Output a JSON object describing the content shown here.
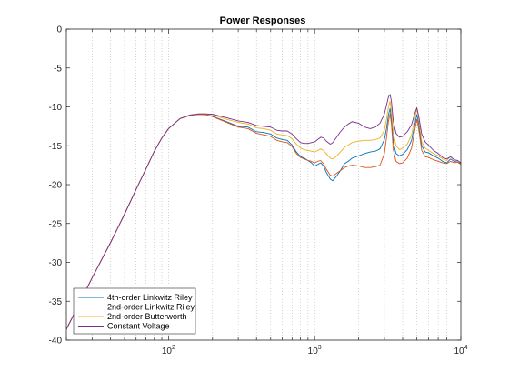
{
  "chart_data": {
    "type": "line",
    "title": "Power Responses",
    "xlabel": "",
    "ylabel": "",
    "x_scale": "log",
    "xlim": [
      20,
      10000
    ],
    "ylim": [
      -40,
      0
    ],
    "grid": "x-major-and-minor",
    "legend_position": "bottom-left",
    "y_ticks": [
      {
        "value": 0,
        "label": "0"
      },
      {
        "value": -5,
        "label": "-5"
      },
      {
        "value": -10,
        "label": "-10"
      },
      {
        "value": -15,
        "label": "-15"
      },
      {
        "value": -20,
        "label": "-20"
      },
      {
        "value": -25,
        "label": "-25"
      },
      {
        "value": -30,
        "label": "-30"
      },
      {
        "value": -35,
        "label": "-35"
      },
      {
        "value": -40,
        "label": "-40"
      }
    ],
    "x_ticks": [
      {
        "value": 100,
        "base": "10",
        "exp": "2"
      },
      {
        "value": 1000,
        "base": "10",
        "exp": "3"
      },
      {
        "value": 10000,
        "base": "10",
        "exp": "4"
      }
    ],
    "series": [
      {
        "name": "4th-order Linkwitz Riley",
        "color": "#0072BD",
        "points": [
          [
            20,
            -38.6
          ],
          [
            25,
            -35.0
          ],
          [
            30,
            -32.0
          ],
          [
            40,
            -27.5
          ],
          [
            50,
            -23.8
          ],
          [
            60,
            -20.6
          ],
          [
            70,
            -18.0
          ],
          [
            80,
            -15.7
          ],
          [
            90,
            -14.0
          ],
          [
            100,
            -12.8
          ],
          [
            120,
            -11.5
          ],
          [
            140,
            -11.1
          ],
          [
            160,
            -10.95
          ],
          [
            180,
            -11.0
          ],
          [
            200,
            -11.2
          ],
          [
            250,
            -11.9
          ],
          [
            300,
            -12.5
          ],
          [
            350,
            -12.6
          ],
          [
            400,
            -13.2
          ],
          [
            450,
            -13.3
          ],
          [
            500,
            -13.5
          ],
          [
            550,
            -14.0
          ],
          [
            600,
            -14.2
          ],
          [
            650,
            -14.3
          ],
          [
            700,
            -14.9
          ],
          [
            750,
            -15.8
          ],
          [
            800,
            -16.4
          ],
          [
            850,
            -16.6
          ],
          [
            900,
            -16.9
          ],
          [
            950,
            -17.2
          ],
          [
            1000,
            -17.6
          ],
          [
            1050,
            -17.4
          ],
          [
            1100,
            -17.2
          ],
          [
            1150,
            -17.6
          ],
          [
            1200,
            -18.4
          ],
          [
            1280,
            -19.3
          ],
          [
            1330,
            -19.5
          ],
          [
            1400,
            -19.0
          ],
          [
            1500,
            -18.2
          ],
          [
            1600,
            -17.3
          ],
          [
            1700,
            -17.0
          ],
          [
            1800,
            -16.6
          ],
          [
            2000,
            -16.3
          ],
          [
            2200,
            -16.0
          ],
          [
            2400,
            -15.8
          ],
          [
            2600,
            -15.7
          ],
          [
            2800,
            -15.4
          ],
          [
            3000,
            -14.2
          ],
          [
            3100,
            -12.8
          ],
          [
            3200,
            -11.0
          ],
          [
            3280,
            -10.2
          ],
          [
            3350,
            -11.6
          ],
          [
            3450,
            -14.5
          ],
          [
            3600,
            -16.0
          ],
          [
            3800,
            -16.3
          ],
          [
            4000,
            -16.1
          ],
          [
            4300,
            -15.5
          ],
          [
            4600,
            -14.3
          ],
          [
            4850,
            -12.2
          ],
          [
            5000,
            -11.0
          ],
          [
            5150,
            -12.2
          ],
          [
            5400,
            -15.0
          ],
          [
            5700,
            -15.8
          ],
          [
            6000,
            -15.9
          ],
          [
            6500,
            -16.3
          ],
          [
            7000,
            -16.6
          ],
          [
            7500,
            -17.0
          ],
          [
            8000,
            -17.2
          ],
          [
            8500,
            -16.7
          ],
          [
            9000,
            -17.0
          ],
          [
            9500,
            -17.1
          ],
          [
            10000,
            -17.3
          ]
        ]
      },
      {
        "name": "2nd-order Linkwitz Riley",
        "color": "#D95319",
        "points": [
          [
            20,
            -38.6
          ],
          [
            25,
            -35.0
          ],
          [
            30,
            -32.0
          ],
          [
            40,
            -27.5
          ],
          [
            50,
            -23.8
          ],
          [
            60,
            -20.6
          ],
          [
            70,
            -18.0
          ],
          [
            80,
            -15.7
          ],
          [
            90,
            -14.0
          ],
          [
            100,
            -12.8
          ],
          [
            120,
            -11.5
          ],
          [
            140,
            -11.1
          ],
          [
            160,
            -10.95
          ],
          [
            180,
            -11.0
          ],
          [
            200,
            -11.25
          ],
          [
            250,
            -12.0
          ],
          [
            300,
            -12.6
          ],
          [
            350,
            -12.8
          ],
          [
            400,
            -13.4
          ],
          [
            450,
            -13.6
          ],
          [
            500,
            -13.8
          ],
          [
            550,
            -14.3
          ],
          [
            600,
            -14.5
          ],
          [
            650,
            -14.6
          ],
          [
            700,
            -15.1
          ],
          [
            750,
            -16.0
          ],
          [
            800,
            -16.5
          ],
          [
            850,
            -16.7
          ],
          [
            900,
            -16.9
          ],
          [
            950,
            -17.0
          ],
          [
            1000,
            -17.2
          ],
          [
            1050,
            -17.0
          ],
          [
            1100,
            -16.9
          ],
          [
            1150,
            -17.3
          ],
          [
            1200,
            -18.0
          ],
          [
            1280,
            -18.8
          ],
          [
            1330,
            -18.9
          ],
          [
            1400,
            -18.6
          ],
          [
            1500,
            -18.2
          ],
          [
            1600,
            -17.8
          ],
          [
            1700,
            -17.6
          ],
          [
            1800,
            -17.5
          ],
          [
            2000,
            -17.6
          ],
          [
            2200,
            -17.8
          ],
          [
            2400,
            -17.8
          ],
          [
            2600,
            -17.7
          ],
          [
            2800,
            -17.5
          ],
          [
            3000,
            -16.0
          ],
          [
            3100,
            -14.0
          ],
          [
            3200,
            -11.8
          ],
          [
            3280,
            -10.9
          ],
          [
            3350,
            -12.2
          ],
          [
            3450,
            -15.5
          ],
          [
            3600,
            -17.0
          ],
          [
            3800,
            -17.3
          ],
          [
            4000,
            -17.2
          ],
          [
            4300,
            -16.6
          ],
          [
            4600,
            -15.3
          ],
          [
            4850,
            -12.9
          ],
          [
            5000,
            -11.6
          ],
          [
            5150,
            -12.9
          ],
          [
            5400,
            -15.6
          ],
          [
            5700,
            -16.4
          ],
          [
            6000,
            -16.5
          ],
          [
            6500,
            -16.8
          ],
          [
            7000,
            -17.0
          ],
          [
            7500,
            -17.2
          ],
          [
            8000,
            -17.3
          ],
          [
            8500,
            -17.0
          ],
          [
            9000,
            -17.2
          ],
          [
            9500,
            -17.1
          ],
          [
            10000,
            -17.4
          ]
        ]
      },
      {
        "name": "2nd-order Butterworth",
        "color": "#EDB120",
        "points": [
          [
            20,
            -38.6
          ],
          [
            25,
            -35.0
          ],
          [
            30,
            -32.0
          ],
          [
            40,
            -27.5
          ],
          [
            50,
            -23.8
          ],
          [
            60,
            -20.6
          ],
          [
            70,
            -18.0
          ],
          [
            80,
            -15.7
          ],
          [
            90,
            -14.0
          ],
          [
            100,
            -12.8
          ],
          [
            120,
            -11.5
          ],
          [
            140,
            -11.05
          ],
          [
            160,
            -10.9
          ],
          [
            180,
            -10.9
          ],
          [
            200,
            -11.0
          ],
          [
            250,
            -11.6
          ],
          [
            300,
            -12.0
          ],
          [
            350,
            -12.2
          ],
          [
            400,
            -12.7
          ],
          [
            450,
            -12.8
          ],
          [
            500,
            -13.0
          ],
          [
            550,
            -13.5
          ],
          [
            600,
            -13.6
          ],
          [
            650,
            -13.7
          ],
          [
            700,
            -14.1
          ],
          [
            750,
            -14.8
          ],
          [
            800,
            -15.3
          ],
          [
            850,
            -15.5
          ],
          [
            900,
            -15.6
          ],
          [
            950,
            -15.7
          ],
          [
            1000,
            -15.8
          ],
          [
            1050,
            -15.6
          ],
          [
            1100,
            -15.4
          ],
          [
            1150,
            -15.6
          ],
          [
            1200,
            -16.0
          ],
          [
            1280,
            -16.6
          ],
          [
            1330,
            -16.7
          ],
          [
            1400,
            -16.4
          ],
          [
            1500,
            -15.8
          ],
          [
            1600,
            -15.2
          ],
          [
            1700,
            -14.9
          ],
          [
            1800,
            -14.6
          ],
          [
            2000,
            -14.4
          ],
          [
            2200,
            -14.3
          ],
          [
            2400,
            -14.3
          ],
          [
            2600,
            -14.2
          ],
          [
            2800,
            -14.0
          ],
          [
            3000,
            -13.0
          ],
          [
            3100,
            -11.6
          ],
          [
            3200,
            -10.0
          ],
          [
            3280,
            -9.3
          ],
          [
            3350,
            -10.5
          ],
          [
            3450,
            -13.2
          ],
          [
            3600,
            -15.0
          ],
          [
            3800,
            -15.5
          ],
          [
            4000,
            -15.3
          ],
          [
            4300,
            -14.8
          ],
          [
            4600,
            -13.6
          ],
          [
            4850,
            -11.4
          ],
          [
            5000,
            -10.3
          ],
          [
            5150,
            -11.5
          ],
          [
            5400,
            -14.5
          ],
          [
            5700,
            -15.3
          ],
          [
            6000,
            -15.6
          ],
          [
            6500,
            -16.0
          ],
          [
            7000,
            -16.3
          ],
          [
            7500,
            -16.7
          ],
          [
            8000,
            -16.9
          ],
          [
            8500,
            -16.4
          ],
          [
            9000,
            -16.8
          ],
          [
            9500,
            -16.9
          ],
          [
            10000,
            -17.2
          ]
        ]
      },
      {
        "name": "Constant Voltage",
        "color": "#7E2F8E",
        "points": [
          [
            20,
            -38.6
          ],
          [
            25,
            -35.0
          ],
          [
            30,
            -32.0
          ],
          [
            40,
            -27.5
          ],
          [
            50,
            -23.8
          ],
          [
            60,
            -20.6
          ],
          [
            70,
            -18.0
          ],
          [
            80,
            -15.7
          ],
          [
            90,
            -14.0
          ],
          [
            100,
            -12.8
          ],
          [
            120,
            -11.5
          ],
          [
            140,
            -11.05
          ],
          [
            160,
            -10.9
          ],
          [
            180,
            -10.9
          ],
          [
            200,
            -10.95
          ],
          [
            250,
            -11.4
          ],
          [
            300,
            -11.8
          ],
          [
            350,
            -12.0
          ],
          [
            400,
            -12.4
          ],
          [
            450,
            -12.5
          ],
          [
            500,
            -12.6
          ],
          [
            550,
            -13.0
          ],
          [
            600,
            -13.1
          ],
          [
            650,
            -13.1
          ],
          [
            700,
            -13.5
          ],
          [
            750,
            -14.1
          ],
          [
            800,
            -14.6
          ],
          [
            850,
            -14.7
          ],
          [
            900,
            -14.7
          ],
          [
            950,
            -14.6
          ],
          [
            1000,
            -14.5
          ],
          [
            1050,
            -14.2
          ],
          [
            1100,
            -13.9
          ],
          [
            1150,
            -14.0
          ],
          [
            1200,
            -14.4
          ],
          [
            1280,
            -14.8
          ],
          [
            1330,
            -14.6
          ],
          [
            1400,
            -14.0
          ],
          [
            1500,
            -13.2
          ],
          [
            1600,
            -12.6
          ],
          [
            1700,
            -12.2
          ],
          [
            1800,
            -11.9
          ],
          [
            2000,
            -12.1
          ],
          [
            2200,
            -12.6
          ],
          [
            2400,
            -12.8
          ],
          [
            2600,
            -12.6
          ],
          [
            2800,
            -12.1
          ],
          [
            3000,
            -10.9
          ],
          [
            3100,
            -9.8
          ],
          [
            3200,
            -8.7
          ],
          [
            3280,
            -8.4
          ],
          [
            3350,
            -9.3
          ],
          [
            3450,
            -11.8
          ],
          [
            3600,
            -13.4
          ],
          [
            3800,
            -13.9
          ],
          [
            4000,
            -13.8
          ],
          [
            4300,
            -13.2
          ],
          [
            4600,
            -12.3
          ],
          [
            4850,
            -10.8
          ],
          [
            5000,
            -10.1
          ],
          [
            5150,
            -11.2
          ],
          [
            5400,
            -13.5
          ],
          [
            5700,
            -14.5
          ],
          [
            6000,
            -14.9
          ],
          [
            6500,
            -15.6
          ],
          [
            7000,
            -16.0
          ],
          [
            7500,
            -16.5
          ],
          [
            8000,
            -16.7
          ],
          [
            8500,
            -16.4
          ],
          [
            9000,
            -16.8
          ],
          [
            9500,
            -16.9
          ],
          [
            10000,
            -17.2
          ]
        ]
      }
    ]
  }
}
